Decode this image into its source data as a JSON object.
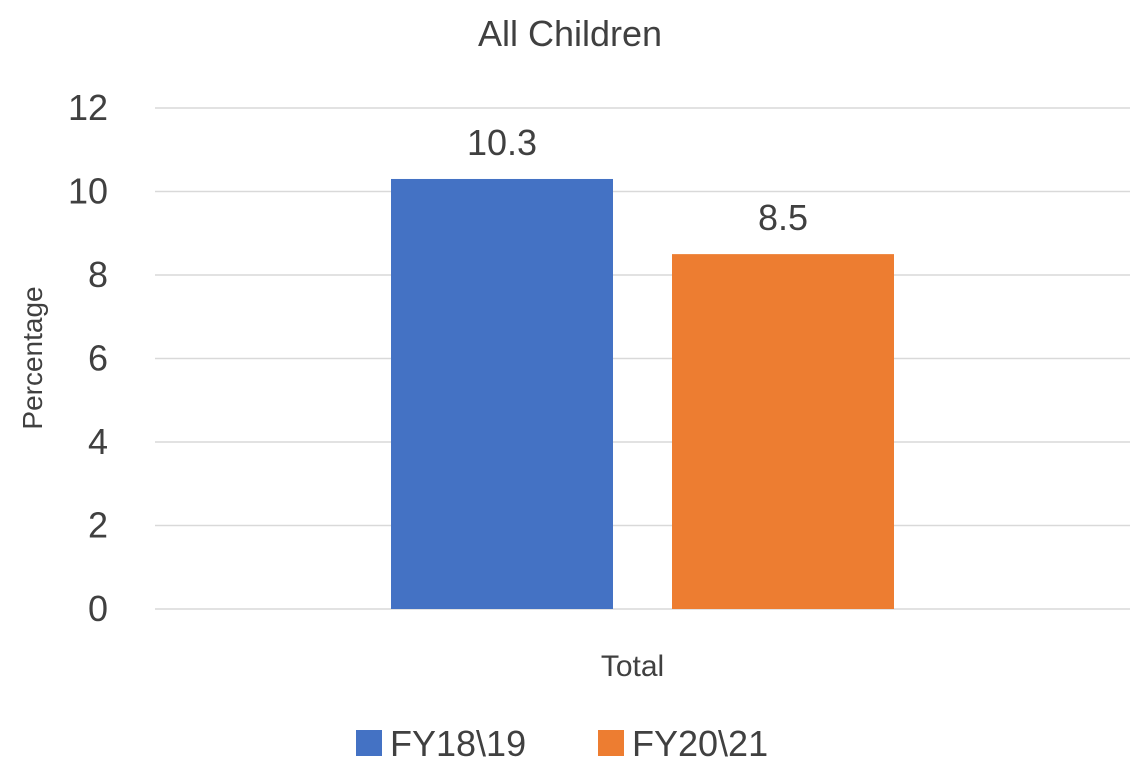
{
  "chart_data": {
    "type": "bar",
    "title": "All Children",
    "xlabel": "",
    "ylabel": "Percentage",
    "categories": [
      "Total"
    ],
    "series": [
      {
        "name": "FY18\\19",
        "values": [
          10.3
        ],
        "color": "#4472C4"
      },
      {
        "name": "FY20\\21",
        "values": [
          8.5
        ],
        "color": "#ED7D31"
      }
    ],
    "ylim": [
      0,
      12
    ],
    "yticks": [
      0,
      2,
      4,
      6,
      8,
      10,
      12
    ],
    "grid": true,
    "data_labels": true,
    "legend_position": "bottom"
  }
}
